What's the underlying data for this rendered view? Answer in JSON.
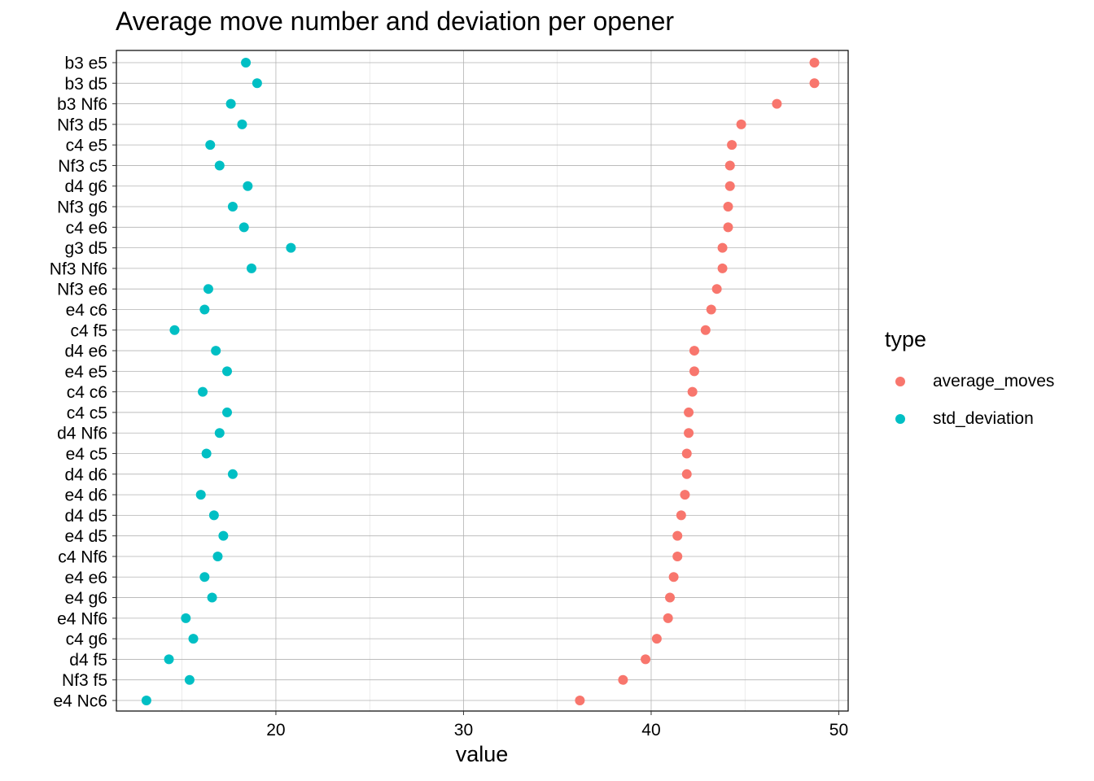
{
  "chart_data": {
    "type": "scatter",
    "title": "Average move number and deviation per opener",
    "xlabel": "value",
    "ylabel": "",
    "xlim": [
      11.5,
      50.5
    ],
    "x_ticks": [
      20,
      30,
      40,
      50
    ],
    "grid": true,
    "legend_title": "type",
    "legend_position": "right",
    "categories": [
      "b3 e5",
      "b3 d5",
      "b3 Nf6",
      "Nf3 d5",
      "c4 e5",
      "Nf3 c5",
      "d4 g6",
      "Nf3 g6",
      "c4 e6",
      "g3 d5",
      "Nf3 Nf6",
      "Nf3 e6",
      "e4 c6",
      "c4 f5",
      "d4 e6",
      "e4 e5",
      "c4 c6",
      "c4 c5",
      "d4 Nf6",
      "e4 c5",
      "d4 d6",
      "e4 d6",
      "d4 d5",
      "e4 d5",
      "c4 Nf6",
      "e4 e6",
      "e4 g6",
      "e4 Nf6",
      "c4 g6",
      "d4 f5",
      "Nf3 f5",
      "e4 Nc6"
    ],
    "series": [
      {
        "name": "average_moves",
        "color": "#F8766D",
        "values": [
          48.7,
          48.7,
          46.7,
          44.8,
          44.3,
          44.2,
          44.2,
          44.1,
          44.1,
          43.8,
          43.8,
          43.5,
          43.2,
          42.9,
          42.3,
          42.3,
          42.2,
          42.0,
          42.0,
          41.9,
          41.9,
          41.8,
          41.6,
          41.4,
          41.4,
          41.2,
          41.0,
          40.9,
          40.3,
          39.7,
          38.5,
          36.2
        ]
      },
      {
        "name": "std_deviation",
        "color": "#00BFC4",
        "values": [
          18.4,
          19.0,
          17.6,
          18.2,
          16.5,
          17.0,
          18.5,
          17.7,
          18.3,
          20.8,
          18.7,
          16.4,
          16.2,
          14.6,
          16.8,
          17.4,
          16.1,
          17.4,
          17.0,
          16.3,
          17.7,
          16.0,
          16.7,
          17.2,
          16.9,
          16.2,
          16.6,
          15.2,
          15.6,
          14.3,
          15.4,
          13.1
        ]
      }
    ]
  }
}
